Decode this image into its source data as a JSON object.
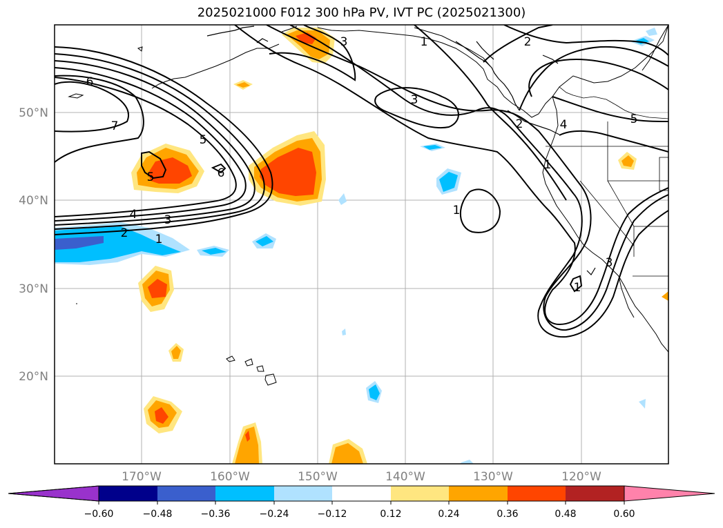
{
  "title": "2025021000 F012 300 hPa PV, IVT PC (2025021300)",
  "axes": {
    "lat_labels": [
      "50°N",
      "40°N",
      "30°N",
      "20°N"
    ],
    "lon_labels": [
      "170°W",
      "160°W",
      "150°W",
      "140°W",
      "130°W",
      "120°W"
    ]
  },
  "colorbar": {
    "ticks": [
      "−0.60",
      "−0.48",
      "−0.36",
      "−0.24",
      "−0.12",
      "0.12",
      "0.24",
      "0.36",
      "0.48",
      "0.60"
    ],
    "colors": [
      "#9932cc",
      "#00008b",
      "#3a5fcd",
      "#00bfff",
      "#b0e2ff",
      "#ffffff",
      "#ffe680",
      "#ffa500",
      "#ff4500",
      "#b22222",
      "#ff82ab"
    ]
  },
  "contour_labels": [
    "6",
    "7",
    "5",
    "5",
    "6",
    "4",
    "3",
    "2",
    "1",
    "3",
    "3",
    "2",
    "1",
    "2",
    "1",
    "5",
    "4",
    "1",
    "3",
    "1"
  ]
}
